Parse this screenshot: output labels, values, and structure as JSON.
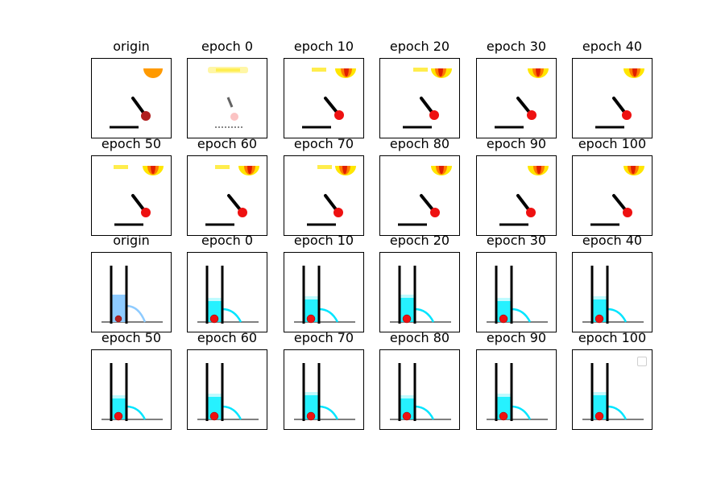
{
  "figure": {
    "rows": [
      {
        "scene": "pendulum",
        "panels": [
          {
            "title": "origin",
            "variant": "origin"
          },
          {
            "title": "epoch 0",
            "variant": "noisy"
          },
          {
            "title": "epoch 10",
            "variant": "normal"
          },
          {
            "title": "epoch 20",
            "variant": "normal"
          },
          {
            "title": "epoch 30",
            "variant": "normal"
          },
          {
            "title": "epoch 40",
            "variant": "normal"
          }
        ]
      },
      {
        "scene": "pendulum",
        "panels": [
          {
            "title": "epoch 50",
            "variant": "normal"
          },
          {
            "title": "epoch 60",
            "variant": "normal"
          },
          {
            "title": "epoch 70",
            "variant": "normal"
          },
          {
            "title": "epoch 80",
            "variant": "normal"
          },
          {
            "title": "epoch 90",
            "variant": "normal"
          },
          {
            "title": "epoch 100",
            "variant": "normal"
          }
        ]
      },
      {
        "scene": "container",
        "panels": [
          {
            "title": "origin",
            "variant": "origin"
          },
          {
            "title": "epoch 0",
            "variant": "normal"
          },
          {
            "title": "epoch 10",
            "variant": "normal"
          },
          {
            "title": "epoch 20",
            "variant": "normal"
          },
          {
            "title": "epoch 30",
            "variant": "normal"
          },
          {
            "title": "epoch 40",
            "variant": "normal"
          }
        ]
      },
      {
        "scene": "container",
        "panels": [
          {
            "title": "epoch 50",
            "variant": "normal"
          },
          {
            "title": "epoch 60",
            "variant": "normal"
          },
          {
            "title": "epoch 70",
            "variant": "normal"
          },
          {
            "title": "epoch 80",
            "variant": "normal"
          },
          {
            "title": "epoch 90",
            "variant": "normal"
          },
          {
            "title": "epoch 100",
            "variant": "normal",
            "legend": true
          }
        ]
      }
    ],
    "colors": {
      "frame": "#000000",
      "light_origin": "#ff9a00",
      "light_hot": "#ffe600",
      "light_mid": "#ff7a00",
      "light_core": "#e02000",
      "ball": "#ee1111",
      "ball_origin": "#b02020",
      "water_origin": "#8ecbff",
      "water": "#00eeff",
      "stream_origin": "#8ecbff",
      "stream": "#00e5ff",
      "ground": "#555555",
      "rod": "#000000"
    }
  }
}
